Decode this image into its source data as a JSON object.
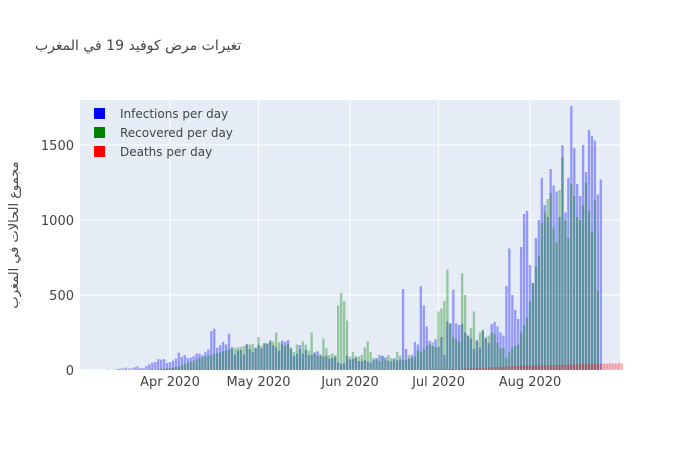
{
  "chart_data": {
    "type": "bar",
    "title": "تغيرات مرض كوفيد 19 في المغرب",
    "xlabel": "",
    "ylabel": "مجموع الحالات في المغرب",
    "x_start": "2020-03-02",
    "x_end": "2020-08-31",
    "x_ticks": [
      {
        "date": "2020-04-01",
        "label": "Apr 2020"
      },
      {
        "date": "2020-05-01",
        "label": "May 2020"
      },
      {
        "date": "2020-06-01",
        "label": "Jun 2020"
      },
      {
        "date": "2020-07-01",
        "label": "Jul 2020"
      },
      {
        "date": "2020-08-01",
        "label": "Aug 2020"
      }
    ],
    "ylim": [
      0,
      1800
    ],
    "y_ticks": [
      0,
      500,
      1000,
      1500
    ],
    "barmode": "overlay",
    "grid": true,
    "legend_position": "top-left",
    "plot_background": "#e5ecf6",
    "series": [
      {
        "name": "Infections per day",
        "color": "#0000ff",
        "values": [
          0,
          1,
          0,
          0,
          0,
          0,
          0,
          0,
          1,
          4,
          1,
          2,
          6,
          9,
          10,
          16,
          9,
          11,
          18,
          23,
          12,
          11,
          26,
          39,
          48,
          53,
          72,
          69,
          73,
          46,
          53,
          62,
          76,
          115,
          88,
          99,
          80,
          82,
          92,
          109,
          110,
          99,
          122,
          137,
          260,
          275,
          148,
          165,
          188,
          170,
          242,
          154,
          102,
          130,
          135,
          105,
          174,
          140,
          122,
          146,
          168,
          143,
          180,
          173,
          188,
          165,
          150,
          129,
          196,
          189,
          200,
          141,
          93,
          108,
          166,
          110,
          135,
          99,
          102,
          118,
          125,
          96,
          88,
          95,
          75,
          80,
          88,
          50,
          40,
          45,
          96,
          70,
          74,
          90,
          60,
          60,
          66,
          56,
          50,
          68,
          80,
          100,
          95,
          85,
          62,
          56,
          78,
          65,
          70,
          539,
          140,
          75,
          102,
          188,
          170,
          558,
          430,
          290,
          195,
          160,
          205,
          155,
          220,
          100,
          325,
          310,
          534,
          310,
          300,
          305,
          250,
          230,
          210,
          140,
          200,
          150,
          260,
          210,
          180,
          306,
          320,
          290,
          250,
          230,
          560,
          810,
          500,
          400,
          340,
          820,
          1040,
          1060,
          700,
          580,
          880,
          1000,
          1280,
          1100,
          1020,
          1340,
          1230,
          1190,
          1020,
          1500,
          1050,
          1280,
          1760,
          1480,
          1240,
          1160,
          1500,
          1320,
          1600,
          1560,
          1530,
          1170,
          1270
        ]
      },
      {
        "name": "Recovered per day",
        "color": "#008000",
        "values": [
          0,
          0,
          0,
          0,
          0,
          0,
          0,
          0,
          0,
          0,
          0,
          0,
          0,
          1,
          0,
          0,
          0,
          0,
          1,
          2,
          0,
          1,
          1,
          2,
          3,
          3,
          5,
          8,
          10,
          12,
          14,
          16,
          20,
          26,
          32,
          40,
          48,
          55,
          62,
          70,
          80,
          86,
          92,
          98,
          102,
          108,
          112,
          118,
          124,
          130,
          136,
          140,
          146,
          150,
          154,
          160,
          165,
          170,
          175,
          150,
          220,
          160,
          175,
          180,
          200,
          190,
          250,
          185,
          175,
          160,
          175,
          150,
          120,
          170,
          140,
          190,
          170,
          130,
          250,
          110,
          95,
          105,
          210,
          145,
          100,
          110,
          100,
          430,
          515,
          460,
          330,
          90,
          120,
          80,
          90,
          100,
          150,
          190,
          120,
          80,
          70,
          60,
          90,
          70,
          100,
          80,
          70,
          120,
          95,
          70,
          65,
          100,
          80,
          90,
          130,
          120,
          140,
          160,
          170,
          185,
          150,
          390,
          410,
          460,
          670,
          310,
          220,
          205,
          190,
          645,
          500,
          230,
          280,
          390,
          190,
          250,
          270,
          220,
          230,
          250,
          240,
          180,
          150,
          145,
          80,
          120,
          150,
          160,
          170,
          250,
          300,
          350,
          460,
          580,
          690,
          760,
          980,
          1050,
          1140,
          1180,
          950,
          850,
          1200,
          1420,
          1000,
          880,
          1240,
          1160,
          1020,
          1000,
          1100,
          1250,
          1060,
          920,
          1130,
          530
        ]
      },
      {
        "name": "Deaths per day",
        "color": "#ff0000",
        "values": [
          0,
          0,
          0,
          0,
          0,
          0,
          0,
          0,
          0,
          0,
          0,
          0,
          0,
          1,
          1,
          0,
          1,
          0,
          1,
          1,
          1,
          1,
          1,
          2,
          3,
          2,
          3,
          3,
          4,
          3,
          5,
          6,
          4,
          5,
          4,
          5,
          6,
          5,
          4,
          5,
          6,
          4,
          5,
          3,
          4,
          3,
          4,
          3,
          2,
          3,
          2,
          3,
          2,
          2,
          3,
          2,
          2,
          1,
          1,
          2,
          1,
          1,
          2,
          1,
          1,
          1,
          1,
          1,
          1,
          1,
          1,
          1,
          1,
          1,
          1,
          1,
          0,
          1,
          1,
          0,
          1,
          0,
          1,
          0,
          1,
          1,
          1,
          0,
          1,
          0,
          0,
          1,
          1,
          0,
          1,
          0,
          1,
          1,
          1,
          1,
          1,
          1,
          2,
          1,
          1,
          2,
          2,
          3,
          2,
          3,
          2,
          3,
          3,
          4,
          3,
          4,
          5,
          4,
          5,
          5,
          6,
          5,
          6,
          7,
          6,
          7,
          8,
          7,
          9,
          8,
          9,
          10,
          11,
          12,
          13,
          14,
          15,
          16,
          17,
          18,
          20,
          19,
          21,
          22,
          23,
          24,
          25,
          26,
          27,
          28,
          29,
          30,
          28,
          31,
          30,
          32,
          31,
          33,
          32,
          34,
          33,
          35,
          34,
          36,
          35,
          37,
          36,
          38,
          37,
          39,
          38,
          40,
          39,
          41,
          40,
          42,
          41,
          43,
          42,
          44,
          43,
          42,
          44,
          45
        ]
      }
    ]
  }
}
